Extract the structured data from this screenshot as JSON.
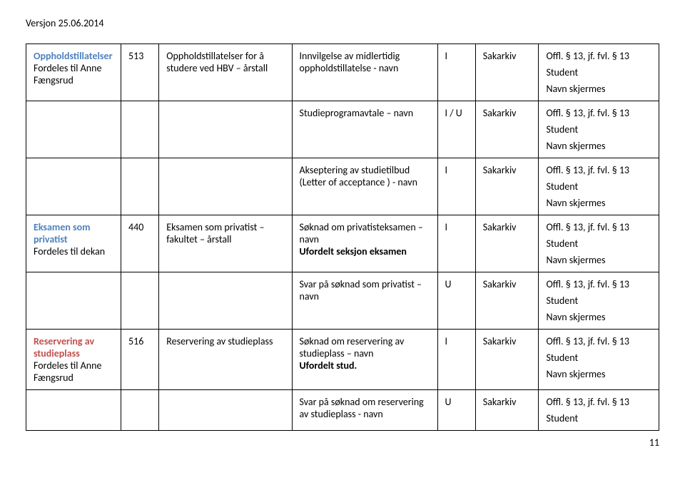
{
  "version_line": "Versjon 25.06.2014",
  "page_number": "11",
  "rows": [
    {
      "c1_heading": "Oppholdstillatelser",
      "c1_heading_color": "blue",
      "c1_sub1": "Fordeles til Anne Fængsrud",
      "c2": "513",
      "c3": "Oppholdstillatelser for å studere ved HBV – årstall",
      "c4_line1": "Innvilgelse av midlertidig oppholdstillatelse - navn",
      "c5": "I",
      "c6": "Sakarkiv",
      "c7_line1": "Offl. § 13, jf. fvl. § 13",
      "c7_line2": "Student",
      "c7_line3": "Navn skjermes"
    },
    {
      "c4_line1": "Studieprogramavtale – navn",
      "c5": "I / U",
      "c6": "Sakarkiv",
      "c7_line1": "Offl. § 13, jf. fvl. § 13",
      "c7_line2": "Student",
      "c7_line3": "Navn skjermes"
    },
    {
      "c4_line1": "Akseptering av studietilbud (Letter of acceptance ) - navn",
      "c5": "I",
      "c6": "Sakarkiv",
      "c7_line1": "Offl. § 13, jf. fvl. § 13",
      "c7_line2": "Student",
      "c7_line3": "Navn skjermes"
    },
    {
      "c1_heading": "Eksamen som privatist",
      "c1_heading_color": "blue",
      "c1_sub1": "Fordeles til dekan",
      "c2": "440",
      "c3": "Eksamen som privatist – fakultet – årstall",
      "c4_line1": "Søknad om privatisteksamen – navn",
      "c4_line2_bold": "Ufordelt seksjon eksamen",
      "c5": "I",
      "c6": "Sakarkiv",
      "c7_line1": "Offl. § 13, jf. fvl. § 13",
      "c7_line2": "Student",
      "c7_line3": "Navn skjermes"
    },
    {
      "c4_line1": "Svar på søknad som privatist – navn",
      "c5": "U",
      "c6": "Sakarkiv",
      "c7_line1": "Offl. § 13, jf. fvl. § 13",
      "c7_line2": "Student",
      "c7_line3": "Navn skjermes"
    },
    {
      "c1_heading": "Reservering av studieplass",
      "c1_heading_color": "red",
      "c1_sub1": "Fordeles til Anne Fængsrud",
      "c2": "516",
      "c3": "Reservering av studieplass",
      "c4_line1": "Søknad om reservering av studieplass – navn",
      "c4_line2_bold": "Ufordelt stud.",
      "c5": "I",
      "c6": "Sakarkiv",
      "c7_line1": "Offl. § 13, jf. fvl. § 13",
      "c7_line2": "Student",
      "c7_line3": "Navn skjermes"
    },
    {
      "c4_line1": "Svar på søknad om reservering av studieplass - navn",
      "c5": "U",
      "c6": "Sakarkiv",
      "c7_line1": "Offl. § 13, jf. fvl. § 13",
      "c7_line2": "Student"
    }
  ]
}
